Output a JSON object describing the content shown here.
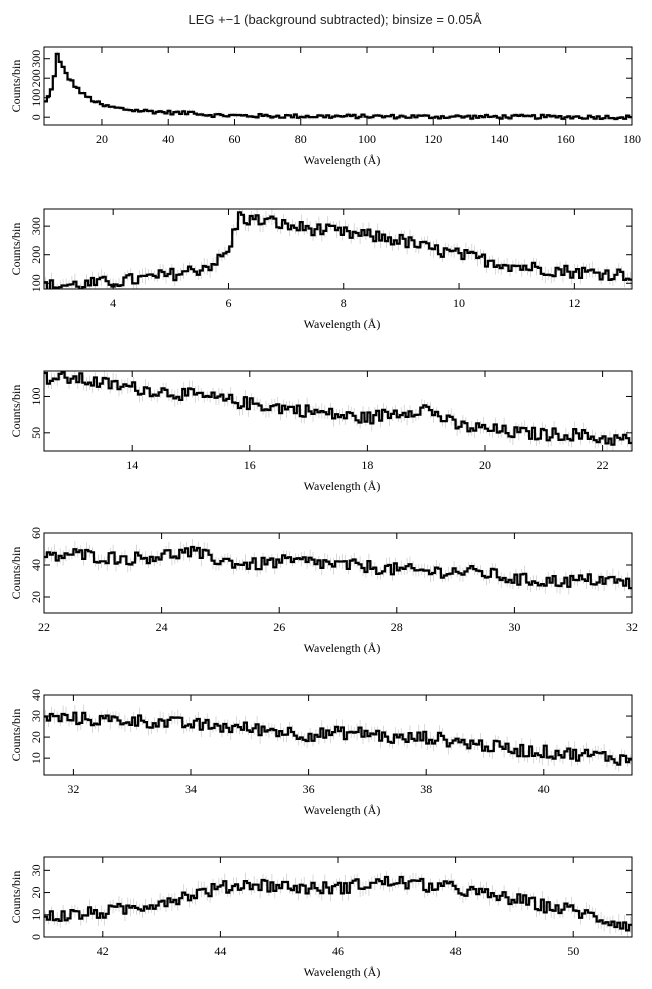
{
  "title": "LEG +−1 (background subtracted); binsize = 0.05Å",
  "chart_data": [
    {
      "type": "line",
      "title": "LEG +−1 (background subtracted); binsize = 0.05Å",
      "xlabel": "Wavelength (Å)",
      "ylabel": "Counts/bin",
      "xlim": [
        2.5,
        180
      ],
      "ylim": [
        -40,
        360
      ],
      "xticks": [
        20,
        40,
        60,
        80,
        100,
        120,
        140,
        160,
        180
      ],
      "yticks": [
        0,
        100,
        200,
        300
      ],
      "series": [
        {
          "x": [
            2.5,
            3,
            4,
            5,
            5.5,
            6,
            6.2,
            6.5,
            7,
            8,
            9,
            10,
            12,
            14,
            16,
            18,
            20,
            25,
            30,
            35,
            40,
            45,
            48,
            50,
            55,
            60,
            70,
            80,
            90,
            100,
            110,
            120,
            130,
            140,
            150,
            160,
            170,
            180
          ],
          "y": [
            60,
            80,
            110,
            150,
            200,
            280,
            350,
            320,
            290,
            260,
            230,
            200,
            160,
            120,
            100,
            80,
            60,
            45,
            35,
            30,
            25,
            20,
            28,
            15,
            10,
            8,
            6,
            5,
            4,
            4,
            3,
            3,
            2,
            2,
            2,
            1,
            1,
            0
          ]
        }
      ]
    },
    {
      "type": "line",
      "xlabel": "Wavelength (Å)",
      "ylabel": "Counts/bin",
      "xlim": [
        2.8,
        13.0
      ],
      "ylim": [
        80,
        360
      ],
      "xticks": [
        4,
        6,
        8,
        10,
        12
      ],
      "yticks": [
        100,
        200,
        300
      ],
      "series": [
        {
          "x": [
            2.8,
            3.0,
            3.5,
            4.0,
            4.5,
            5.0,
            5.5,
            5.8,
            6.0,
            6.1,
            6.2,
            6.3,
            6.5,
            6.8,
            7.0,
            7.5,
            8.0,
            8.5,
            9.0,
            9.5,
            10.0,
            10.5,
            11.0,
            11.5,
            12.0,
            12.5,
            13.0
          ],
          "y": [
            90,
            92,
            95,
            105,
            115,
            130,
            150,
            175,
            210,
            280,
            340,
            325,
            320,
            315,
            300,
            290,
            275,
            265,
            250,
            220,
            200,
            180,
            160,
            150,
            140,
            135,
            130
          ]
        }
      ]
    },
    {
      "type": "line",
      "xlabel": "Wavelength (Å)",
      "ylabel": "Counts/bin",
      "xlim": [
        12.5,
        22.5
      ],
      "ylim": [
        25,
        135
      ],
      "xticks": [
        14,
        16,
        18,
        20,
        22
      ],
      "yticks": [
        50,
        100
      ],
      "series": [
        {
          "x": [
            12.5,
            13.0,
            13.5,
            14.0,
            14.5,
            15.0,
            15.5,
            16.0,
            16.5,
            17.0,
            17.5,
            18.0,
            18.5,
            19.0,
            19.5,
            20.0,
            20.5,
            21.0,
            21.5,
            22.0,
            22.5
          ],
          "y": [
            125,
            125,
            118,
            112,
            107,
            102,
            96,
            90,
            85,
            80,
            74,
            70,
            78,
            84,
            60,
            55,
            50,
            48,
            48,
            42,
            40
          ]
        }
      ]
    },
    {
      "type": "line",
      "xlabel": "Wavelength (Å)",
      "ylabel": "Counts/bin",
      "xlim": [
        22,
        32
      ],
      "ylim": [
        10,
        60
      ],
      "xticks": [
        22,
        24,
        26,
        28,
        30,
        32
      ],
      "yticks": [
        20,
        40,
        60
      ],
      "series": [
        {
          "x": [
            22,
            22.5,
            23,
            23.5,
            24,
            24.5,
            25,
            25.5,
            26,
            26.5,
            27,
            27.5,
            28,
            28.5,
            29,
            29.5,
            30,
            30.5,
            31,
            31.5,
            32
          ],
          "y": [
            44,
            47,
            45,
            44,
            46,
            48,
            43,
            40,
            42,
            42,
            40,
            39,
            37,
            36,
            36,
            35,
            31,
            30,
            30,
            31,
            28
          ]
        }
      ]
    },
    {
      "type": "line",
      "xlabel": "Wavelength (Å)",
      "ylabel": "Counts/bin",
      "xlim": [
        31.5,
        41.5
      ],
      "ylim": [
        2,
        40
      ],
      "xticks": [
        32,
        34,
        36,
        38,
        40
      ],
      "yticks": [
        10,
        20,
        30,
        40
      ],
      "series": [
        {
          "x": [
            31.5,
            32,
            32.5,
            33,
            33.5,
            34,
            34.5,
            35,
            35.5,
            36,
            36.5,
            37,
            37.5,
            38,
            38.5,
            39,
            39.5,
            40,
            40.5,
            41,
            41.5
          ],
          "y": [
            29,
            29,
            28,
            28,
            27,
            26,
            25,
            24,
            23,
            21,
            22,
            22,
            19,
            20,
            18,
            16,
            14,
            13,
            12,
            11,
            9
          ]
        }
      ]
    },
    {
      "type": "line",
      "xlabel": "Wavelength (Å)",
      "ylabel": "Counts/bin",
      "xlim": [
        41,
        51
      ],
      "ylim": [
        0,
        36
      ],
      "xticks": [
        42,
        44,
        46,
        48,
        50
      ],
      "yticks": [
        0,
        10,
        20,
        30
      ],
      "series": [
        {
          "x": [
            41,
            41.5,
            42,
            42.5,
            43,
            43.5,
            44,
            44.5,
            45,
            45.5,
            46,
            46.5,
            47,
            47.5,
            48,
            48.5,
            49,
            49.5,
            50,
            50.5,
            51
          ],
          "y": [
            9,
            10,
            11,
            13,
            16,
            19,
            22,
            24,
            23,
            22,
            22,
            24,
            25,
            23,
            22,
            19,
            17,
            14,
            12,
            8,
            5
          ]
        }
      ]
    }
  ]
}
